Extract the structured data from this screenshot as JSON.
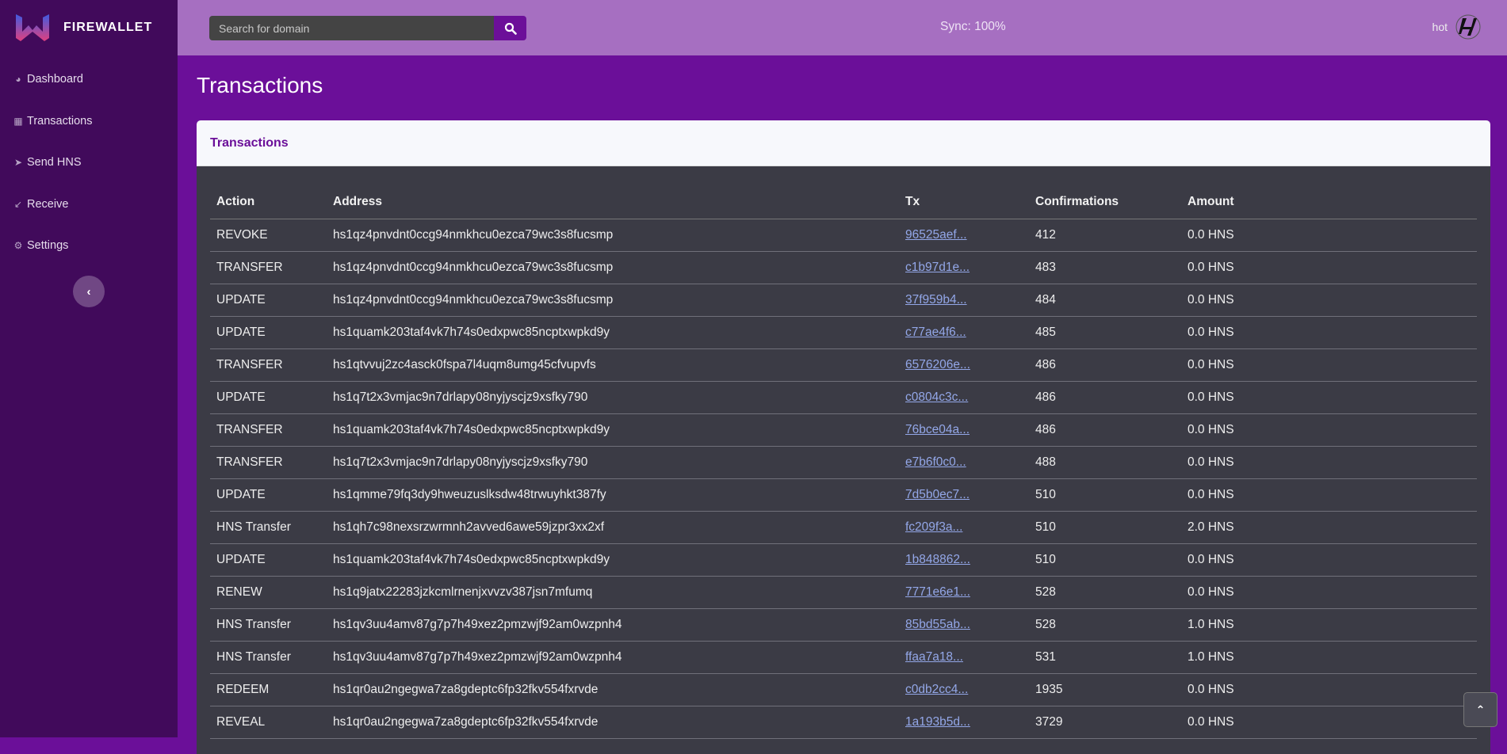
{
  "brand": {
    "name": "FIREWALLET"
  },
  "sidebar": {
    "items": [
      {
        "label": "Dashboard",
        "icon": "dashboard-icon"
      },
      {
        "label": "Transactions",
        "icon": "table-icon"
      },
      {
        "label": "Send HNS",
        "icon": "send-icon"
      },
      {
        "label": "Receive",
        "icon": "receive-arrow-icon"
      },
      {
        "label": "Settings",
        "icon": "gear-icon"
      }
    ],
    "collapse_glyph": "‹"
  },
  "header": {
    "search_placeholder": "Search for domain",
    "sync": "Sync: 100%",
    "user": "hot"
  },
  "page": {
    "title": "Transactions"
  },
  "card": {
    "title": "Transactions"
  },
  "colors": {
    "sidebar": "#410a5b",
    "topbar": "#a66fc1",
    "main": "#6b0f99",
    "table_bg": "#3b3b45",
    "link": "#93a7e8"
  },
  "table": {
    "columns": [
      "Action",
      "Address",
      "Tx",
      "Confirmations",
      "Amount"
    ],
    "rows": [
      [
        "REVOKE",
        "hs1qz4pnvdnt0ccg94nmkhcu0ezca79wc3s8fucsmp",
        "96525aef...",
        "412",
        "0.0 HNS"
      ],
      [
        "TRANSFER",
        "hs1qz4pnvdnt0ccg94nmkhcu0ezca79wc3s8fucsmp",
        "c1b97d1e...",
        "483",
        "0.0 HNS"
      ],
      [
        "UPDATE",
        "hs1qz4pnvdnt0ccg94nmkhcu0ezca79wc3s8fucsmp",
        "37f959b4...",
        "484",
        "0.0 HNS"
      ],
      [
        "UPDATE",
        "hs1quamk203taf4vk7h74s0edxpwc85ncptxwpkd9y",
        "c77ae4f6...",
        "485",
        "0.0 HNS"
      ],
      [
        "TRANSFER",
        "hs1qtvvuj2zc4asck0fspa7l4uqm8umg45cfvupvfs",
        "6576206e...",
        "486",
        "0.0 HNS"
      ],
      [
        "UPDATE",
        "hs1q7t2x3vmjac9n7drlapy08nyjyscjz9xsfky790",
        "c0804c3c...",
        "486",
        "0.0 HNS"
      ],
      [
        "TRANSFER",
        "hs1quamk203taf4vk7h74s0edxpwc85ncptxwpkd9y",
        "76bce04a...",
        "486",
        "0.0 HNS"
      ],
      [
        "TRANSFER",
        "hs1q7t2x3vmjac9n7drlapy08nyjyscjz9xsfky790",
        "e7b6f0c0...",
        "488",
        "0.0 HNS"
      ],
      [
        "UPDATE",
        "hs1qmme79fq3dy9hweuzuslksdw48trwuyhkt387fy",
        "7d5b0ec7...",
        "510",
        "0.0 HNS"
      ],
      [
        "HNS Transfer",
        "hs1qh7c98nexsrzwrmnh2avved6awe59jzpr3xx2xf",
        "fc209f3a...",
        "510",
        "2.0 HNS"
      ],
      [
        "UPDATE",
        "hs1quamk203taf4vk7h74s0edxpwc85ncptxwpkd9y",
        "1b848862...",
        "510",
        "0.0 HNS"
      ],
      [
        "RENEW",
        "hs1q9jatx22283jzkcmlrnenjxvvzv387jsn7mfumq",
        "7771e6e1...",
        "528",
        "0.0 HNS"
      ],
      [
        "HNS Transfer",
        "hs1qv3uu4amv87g7p7h49xez2pmzwjf92am0wzpnh4",
        "85bd55ab...",
        "528",
        "1.0 HNS"
      ],
      [
        "HNS Transfer",
        "hs1qv3uu4amv87g7p7h49xez2pmzwjf92am0wzpnh4",
        "ffaa7a18...",
        "531",
        "1.0 HNS"
      ],
      [
        "REDEEM",
        "hs1qr0au2ngegwa7za8gdeptc6fp32fkv554fxrvde",
        "c0db2cc4...",
        "1935",
        "0.0 HNS"
      ],
      [
        "REVEAL",
        "hs1qr0au2ngegwa7za8gdeptc6fp32fkv554fxrvde",
        "1a193b5d...",
        "3729",
        "0.0 HNS"
      ]
    ]
  },
  "scroll_top": {
    "glyph": "⌃"
  }
}
